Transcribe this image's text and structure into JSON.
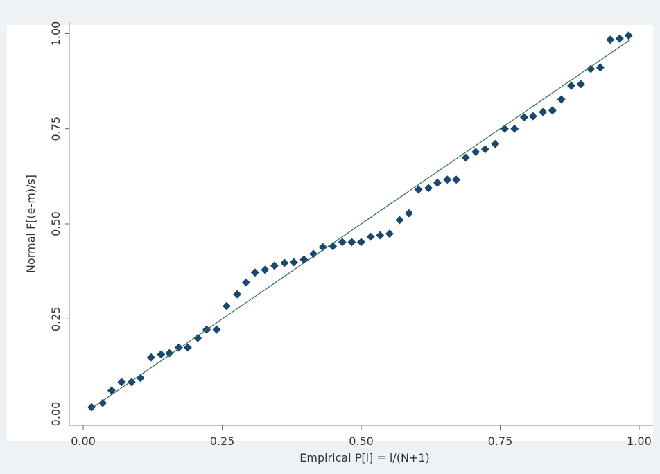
{
  "chart_data": {
    "type": "scatter",
    "x_label": "Empirical P[i] = i/(N+1)",
    "y_label": "Normal F[(e-m)/s]",
    "xlim": [
      -0.025,
      1.025
    ],
    "ylim": [
      -0.03,
      1.03
    ],
    "xticks": [
      {
        "value": 0,
        "label": "0.00"
      },
      {
        "value": 0.25,
        "label": "0.25"
      },
      {
        "value": 0.5,
        "label": "0.50"
      },
      {
        "value": 0.75,
        "label": "0.75"
      },
      {
        "value": 1,
        "label": "1.00"
      }
    ],
    "yticks": [
      {
        "value": 0,
        "label": "0.00"
      },
      {
        "value": 0.25,
        "label": "0.25"
      },
      {
        "value": 0.5,
        "label": "0.50"
      },
      {
        "value": 0.75,
        "label": "0.75"
      },
      {
        "value": 1,
        "label": "1.00"
      }
    ],
    "grid": false,
    "series": [
      {
        "type": "scatter",
        "color": "#1a476f",
        "x": [
          0.015,
          0.035,
          0.051,
          0.069,
          0.087,
          0.103,
          0.122,
          0.14,
          0.155,
          0.172,
          0.188,
          0.206,
          0.222,
          0.24,
          0.258,
          0.277,
          0.293,
          0.309,
          0.327,
          0.344,
          0.362,
          0.379,
          0.397,
          0.414,
          0.431,
          0.449,
          0.466,
          0.483,
          0.5,
          0.517,
          0.534,
          0.551,
          0.569,
          0.586,
          0.603,
          0.621,
          0.637,
          0.655,
          0.671,
          0.688,
          0.706,
          0.723,
          0.741,
          0.758,
          0.776,
          0.793,
          0.809,
          0.827,
          0.844,
          0.86,
          0.878,
          0.895,
          0.913,
          0.93,
          0.948,
          0.965,
          0.981
        ],
        "values": [
          0.018,
          0.029,
          0.062,
          0.084,
          0.084,
          0.095,
          0.149,
          0.157,
          0.16,
          0.175,
          0.175,
          0.2,
          0.222,
          0.222,
          0.284,
          0.315,
          0.346,
          0.372,
          0.379,
          0.39,
          0.397,
          0.399,
          0.406,
          0.421,
          0.439,
          0.441,
          0.452,
          0.452,
          0.452,
          0.466,
          0.47,
          0.474,
          0.51,
          0.528,
          0.59,
          0.594,
          0.608,
          0.616,
          0.616,
          0.674,
          0.689,
          0.696,
          0.71,
          0.75,
          0.75,
          0.78,
          0.783,
          0.794,
          0.798,
          0.827,
          0.863,
          0.867,
          0.907,
          0.911,
          0.984,
          0.987,
          0.995
        ]
      },
      {
        "type": "line",
        "color": "#2e6b4f",
        "x": [
          0.016,
          0.984
        ],
        "values": [
          0.016,
          0.984
        ]
      }
    ]
  }
}
